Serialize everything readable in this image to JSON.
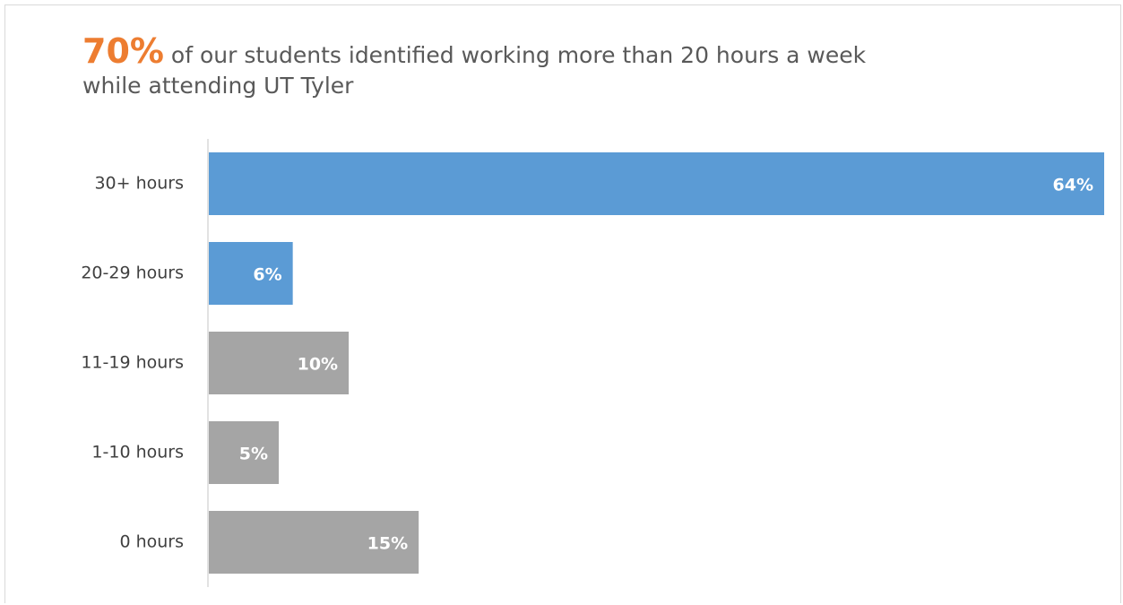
{
  "chart_data": {
    "type": "barh",
    "title_highlight": "70%",
    "title": "of our students identified working more than 20 hours a week while attending UT Tyler",
    "categories": [
      "30+ hours",
      "20-29 hours",
      "11-19 hours",
      "1-10 hours",
      "0 hours"
    ],
    "values": [
      64,
      6,
      10,
      5,
      15
    ],
    "value_labels": [
      "64%",
      "6%",
      "10%",
      "5%",
      "15%"
    ],
    "colors": [
      "#5b9bd5",
      "#5b9bd5",
      "#a5a5a5",
      "#a5a5a5",
      "#a5a5a5"
    ],
    "highlight_color": "#ed7d31"
  }
}
